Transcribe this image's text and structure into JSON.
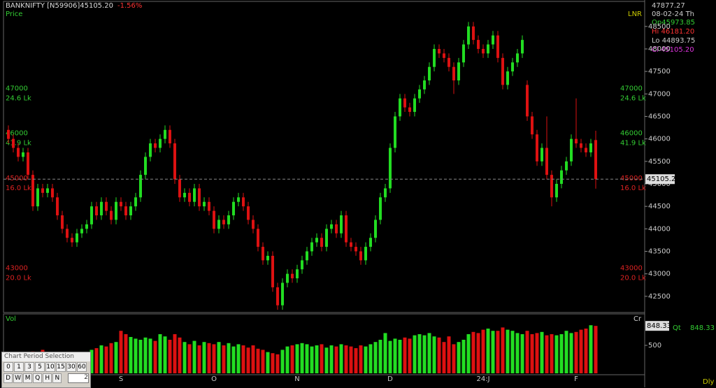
{
  "header": {
    "symbol": "BANKNIFTY [N59906]45105.20",
    "change": "-1.56%",
    "panel": "Price",
    "indicator": "LNR"
  },
  "info": {
    "cursor": "47877.27",
    "date": "08-02-24 Th",
    "open": "Op45973.85",
    "high": "Hi 46181.20",
    "low": "Lo 44893.75",
    "close": "Cl 45105.20"
  },
  "chart_data": {
    "type": "candlestick",
    "ylim": [
      42140,
      49010
    ],
    "yticks": [
      42500,
      43000,
      43500,
      44000,
      44500,
      45000,
      45500,
      46000,
      46500,
      47000,
      47500,
      48000,
      48500
    ],
    "up_color": "#22dd22",
    "down_color": "#dd1111",
    "last_price_label": "45105.2",
    "levels": [
      {
        "value": 47000,
        "sub": "24.6 Lk",
        "color": "#33cc33"
      },
      {
        "value": 46000,
        "sub": "41.9 Lk",
        "color": "#33cc33"
      },
      {
        "value": 45000,
        "sub": "16.0 Lk",
        "color": "#dd2222"
      },
      {
        "value": 43000,
        "sub": "20.0 Lk",
        "color": "#dd2222"
      }
    ],
    "xlabels": [
      {
        "label": "S",
        "at": 23
      },
      {
        "label": "O",
        "at": 42
      },
      {
        "label": "N",
        "at": 59
      },
      {
        "label": "D",
        "at": 78
      },
      {
        "label": "24:J",
        "at": 97
      },
      {
        "label": "F",
        "at": 116
      }
    ],
    "candles": [
      [
        46200,
        46300,
        45900,
        46000
      ],
      [
        46000,
        46100,
        45700,
        45800
      ],
      [
        45800,
        45900,
        45500,
        45600
      ],
      [
        45600,
        45800,
        45500,
        45700
      ],
      [
        45700,
        45800,
        45100,
        45200
      ],
      [
        45200,
        45300,
        44400,
        44500
      ],
      [
        44500,
        45000,
        44400,
        44900
      ],
      [
        44900,
        45000,
        44700,
        44800
      ],
      [
        44800,
        45000,
        44700,
        44900
      ],
      [
        44900,
        45000,
        44600,
        44700
      ],
      [
        44700,
        44800,
        44200,
        44300
      ],
      [
        44300,
        44400,
        43900,
        44000
      ],
      [
        44000,
        44100,
        43700,
        43800
      ],
      [
        43800,
        43900,
        43600,
        43700
      ],
      [
        43700,
        44000,
        43600,
        43900
      ],
      [
        43900,
        44100,
        43800,
        44000
      ],
      [
        44000,
        44200,
        43900,
        44100
      ],
      [
        44100,
        44600,
        44000,
        44500
      ],
      [
        44500,
        44600,
        44200,
        44300
      ],
      [
        44300,
        44700,
        44200,
        44600
      ],
      [
        44600,
        44700,
        44300,
        44400
      ],
      [
        44400,
        44500,
        44100,
        44200
      ],
      [
        44200,
        44700,
        44100,
        44600
      ],
      [
        44600,
        44700,
        44400,
        44500
      ],
      [
        44500,
        44600,
        44200,
        44300
      ],
      [
        44300,
        44600,
        44200,
        44500
      ],
      [
        44500,
        44800,
        44400,
        44700
      ],
      [
        44700,
        45300,
        44600,
        45200
      ],
      [
        45200,
        45700,
        45100,
        45600
      ],
      [
        45600,
        46000,
        45500,
        45900
      ],
      [
        45900,
        46000,
        45700,
        45800
      ],
      [
        45800,
        46100,
        45700,
        46000
      ],
      [
        46000,
        46300,
        45900,
        46200
      ],
      [
        46200,
        46300,
        45800,
        45900
      ],
      [
        45900,
        46000,
        45000,
        45100
      ],
      [
        45100,
        45200,
        44600,
        44700
      ],
      [
        44700,
        44900,
        44600,
        44800
      ],
      [
        44800,
        44900,
        44500,
        44600
      ],
      [
        44600,
        45000,
        44500,
        44900
      ],
      [
        44900,
        45000,
        44400,
        44500
      ],
      [
        44500,
        44700,
        44400,
        44600
      ],
      [
        44600,
        44700,
        44300,
        44400
      ],
      [
        44400,
        44500,
        43900,
        44000
      ],
      [
        44000,
        44300,
        43900,
        44200
      ],
      [
        44200,
        44300,
        44000,
        44100
      ],
      [
        44100,
        44400,
        44000,
        44300
      ],
      [
        44300,
        44700,
        44200,
        44600
      ],
      [
        44600,
        44800,
        44500,
        44700
      ],
      [
        44700,
        44800,
        44400,
        44500
      ],
      [
        44500,
        44600,
        44100,
        44200
      ],
      [
        44200,
        44300,
        43900,
        44000
      ],
      [
        44000,
        44100,
        43500,
        43600
      ],
      [
        43600,
        43700,
        43200,
        43300
      ],
      [
        43300,
        43500,
        43200,
        43400
      ],
      [
        43400,
        43500,
        42600,
        42700
      ],
      [
        42700,
        42800,
        42200,
        42300
      ],
      [
        42300,
        42900,
        42200,
        42800
      ],
      [
        42800,
        43100,
        42700,
        43000
      ],
      [
        43000,
        43100,
        42800,
        42900
      ],
      [
        42900,
        43200,
        42800,
        43100
      ],
      [
        43100,
        43400,
        43000,
        43300
      ],
      [
        43300,
        43600,
        43200,
        43500
      ],
      [
        43500,
        43800,
        43400,
        43700
      ],
      [
        43700,
        43900,
        43600,
        43800
      ],
      [
        43800,
        43900,
        43500,
        43600
      ],
      [
        43600,
        44100,
        43500,
        44000
      ],
      [
        44000,
        44200,
        43900,
        44100
      ],
      [
        44100,
        44200,
        43800,
        43900
      ],
      [
        43900,
        44400,
        43800,
        44300
      ],
      [
        44300,
        44400,
        43600,
        43700
      ],
      [
        43700,
        43800,
        43500,
        43600
      ],
      [
        43600,
        43700,
        43400,
        43500
      ],
      [
        43500,
        43600,
        43200,
        43300
      ],
      [
        43300,
        43700,
        43200,
        43600
      ],
      [
        43600,
        43900,
        43500,
        43800
      ],
      [
        43800,
        44300,
        43700,
        44200
      ],
      [
        44200,
        44800,
        44100,
        44700
      ],
      [
        44700,
        45000,
        44600,
        44900
      ],
      [
        44900,
        45900,
        44800,
        45800
      ],
      [
        45800,
        46600,
        45700,
        46500
      ],
      [
        46500,
        47000,
        46400,
        46900
      ],
      [
        46900,
        47000,
        46600,
        46700
      ],
      [
        46700,
        46800,
        46500,
        46600
      ],
      [
        46600,
        47000,
        46500,
        46900
      ],
      [
        46900,
        47200,
        46800,
        47100
      ],
      [
        47100,
        47400,
        47000,
        47300
      ],
      [
        47300,
        47700,
        47200,
        47600
      ],
      [
        47600,
        48100,
        47500,
        48000
      ],
      [
        48000,
        48100,
        47800,
        47900
      ],
      [
        47900,
        48000,
        47700,
        47800
      ],
      [
        47800,
        47900,
        47500,
        47600
      ],
      [
        47600,
        47700,
        47000,
        47300
      ],
      [
        47300,
        47800,
        47200,
        47700
      ],
      [
        47700,
        48200,
        47600,
        48100
      ],
      [
        48100,
        48600,
        48000,
        48500
      ],
      [
        48500,
        48600,
        48100,
        48200
      ],
      [
        48200,
        48300,
        47900,
        48000
      ],
      [
        48000,
        48100,
        47800,
        47900
      ],
      [
        47900,
        48200,
        47800,
        48100
      ],
      [
        48100,
        48400,
        48000,
        48300
      ],
      [
        48300,
        48400,
        47700,
        47800
      ],
      [
        47800,
        47900,
        47100,
        47200
      ],
      [
        47200,
        47600,
        47100,
        47500
      ],
      [
        47500,
        47800,
        47400,
        47700
      ],
      [
        47700,
        48000,
        47600,
        47900
      ],
      [
        47900,
        48300,
        47800,
        48200
      ],
      [
        47200,
        47300,
        46400,
        46500
      ],
      [
        46500,
        46600,
        46000,
        46100
      ],
      [
        46100,
        46200,
        45400,
        45500
      ],
      [
        45500,
        45900,
        45400,
        45800
      ],
      [
        45800,
        46500,
        45100,
        45200
      ],
      [
        45200,
        45300,
        44500,
        44700
      ],
      [
        44700,
        45100,
        44600,
        45000
      ],
      [
        45000,
        45400,
        44900,
        45300
      ],
      [
        45300,
        45600,
        45200,
        45500
      ],
      [
        45500,
        46100,
        45400,
        46000
      ],
      [
        46000,
        46900,
        45800,
        45900
      ],
      [
        45900,
        46000,
        45700,
        45800
      ],
      [
        45800,
        45900,
        45600,
        45700
      ],
      [
        45700,
        46000,
        45600,
        45900
      ],
      [
        45974,
        46181,
        44894,
        45105
      ]
    ]
  },
  "volume_data": {
    "type": "bar",
    "title": "Vol",
    "corner": "Cr",
    "ylim": [
      0,
      1050
    ],
    "yticks": [
      500
    ],
    "value_label": "848.33",
    "qty_label": "Qt",
    "qty_value": "848.33",
    "values": [
      300,
      330,
      350,
      380,
      340,
      390,
      360,
      420,
      380,
      350,
      300,
      310,
      320,
      330,
      340,
      330,
      380,
      420,
      450,
      500,
      480,
      540,
      560,
      760,
      700,
      650,
      620,
      600,
      640,
      620,
      580,
      700,
      660,
      600,
      700,
      640,
      560,
      520,
      580,
      500,
      560,
      540,
      520,
      560,
      500,
      540,
      480,
      520,
      500,
      460,
      500,
      440,
      420,
      380,
      360,
      340,
      420,
      480,
      500,
      520,
      540,
      520,
      480,
      500,
      520,
      460,
      500,
      480,
      520,
      500,
      480,
      450,
      500,
      480,
      520,
      560,
      600,
      720,
      580,
      620,
      600,
      640,
      620,
      680,
      700,
      680,
      720,
      660,
      640,
      560,
      660,
      520,
      560,
      600,
      700,
      740,
      720,
      780,
      800,
      760,
      760,
      820,
      780,
      760,
      720,
      700,
      760,
      700,
      720,
      740,
      680,
      700,
      680,
      700,
      760,
      720,
      740,
      780,
      800,
      860,
      848
    ]
  },
  "footer": {
    "period": "Dly"
  },
  "period_panel": {
    "title": "Chart Period Selection",
    "row1": [
      "0",
      "1",
      "3",
      "5",
      "10",
      "15",
      "30",
      "60"
    ],
    "row2": [
      "D",
      "W",
      "M",
      "Q",
      "H",
      "N"
    ],
    "input": "2"
  }
}
